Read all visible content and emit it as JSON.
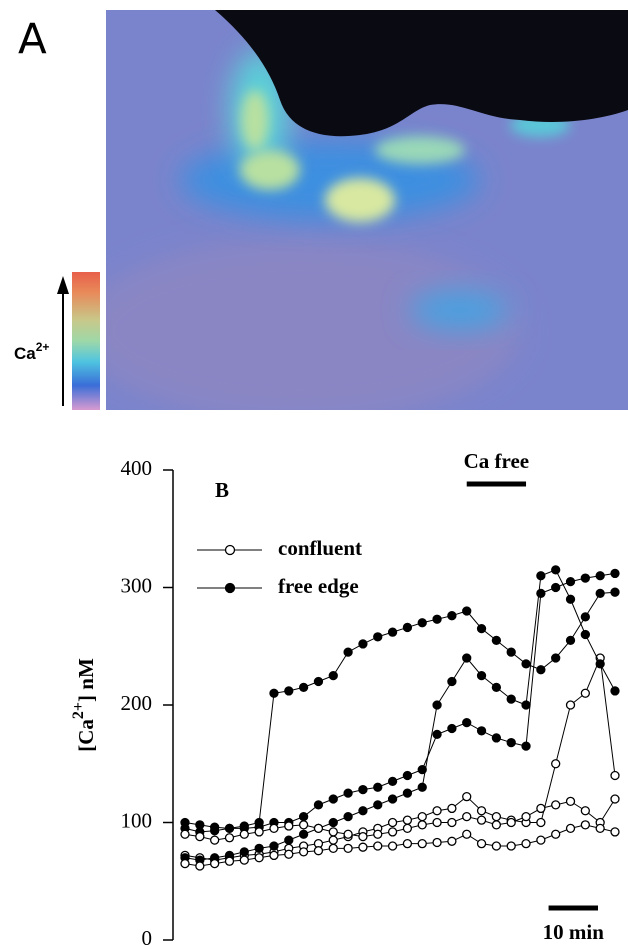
{
  "panel_a": {
    "label": "A",
    "colorbar_label": "Ca",
    "colorbar_label_sup": "2+"
  },
  "chart_data": {
    "type": "line",
    "panel_label": "B",
    "ylabel": {
      "text": "[Ca",
      "sup": "2+",
      "end": "] nM"
    },
    "x": [
      0,
      3,
      6,
      9,
      12,
      15,
      18,
      21,
      24,
      27,
      30,
      33,
      36,
      39,
      42,
      45,
      48,
      51,
      54,
      57,
      60,
      63,
      66,
      69,
      72,
      75,
      78,
      81,
      84,
      87
    ],
    "xlim": [
      0,
      87
    ],
    "ylim": [
      0,
      400
    ],
    "yticks": [
      0,
      100,
      200,
      300,
      400
    ],
    "legend": "upper left",
    "series": [
      {
        "name": "confluent",
        "color": "#000000",
        "marker": "open",
        "values": [
          72,
          70,
          68,
          70,
          72,
          73,
          75,
          78,
          80,
          82,
          85,
          88,
          92,
          95,
          100,
          102,
          105,
          110,
          112,
          122,
          110,
          105,
          102,
          100,
          100,
          150,
          200,
          210,
          240,
          140
        ]
      },
      {
        "name": "free edge",
        "color": "#000000",
        "marker": "filled",
        "values": [
          95,
          92,
          93,
          95,
          97,
          100,
          210,
          212,
          215,
          220,
          225,
          245,
          252,
          258,
          262,
          266,
          270,
          273,
          276,
          280,
          265,
          255,
          245,
          235,
          230,
          240,
          255,
          275,
          295,
          296
        ]
      },
      {
        "color": "#000000",
        "marker": "filled",
        "values": [
          70,
          68,
          70,
          72,
          75,
          78,
          80,
          85,
          90,
          95,
          100,
          105,
          110,
          115,
          120,
          125,
          130,
          200,
          220,
          240,
          225,
          215,
          205,
          200,
          310,
          315,
          290,
          260,
          235,
          212
        ]
      },
      {
        "color": "#000000",
        "marker": "filled",
        "values": [
          100,
          98,
          96,
          95,
          95,
          96,
          100,
          100,
          105,
          115,
          120,
          125,
          128,
          130,
          135,
          140,
          145,
          175,
          180,
          185,
          178,
          172,
          168,
          165,
          295,
          300,
          305,
          308,
          310,
          312
        ]
      },
      {
        "color": "#000000",
        "marker": "open",
        "values": [
          90,
          88,
          85,
          87,
          90,
          92,
          95,
          97,
          98,
          95,
          92,
          90,
          88,
          90,
          92,
          95,
          98,
          100,
          100,
          105,
          102,
          98,
          100,
          105,
          112,
          115,
          118,
          110,
          100,
          120
        ]
      },
      {
        "color": "#000000",
        "marker": "open",
        "values": [
          65,
          63,
          65,
          67,
          68,
          70,
          72,
          73,
          75,
          76,
          78,
          78,
          79,
          80,
          80,
          82,
          82,
          83,
          84,
          90,
          82,
          80,
          80,
          82,
          85,
          90,
          95,
          98,
          95,
          92
        ]
      }
    ],
    "ca_free": {
      "label": "Ca free",
      "start": 57,
      "end": 69
    },
    "scale_bar": {
      "value": 10,
      "label": "10 min"
    }
  }
}
